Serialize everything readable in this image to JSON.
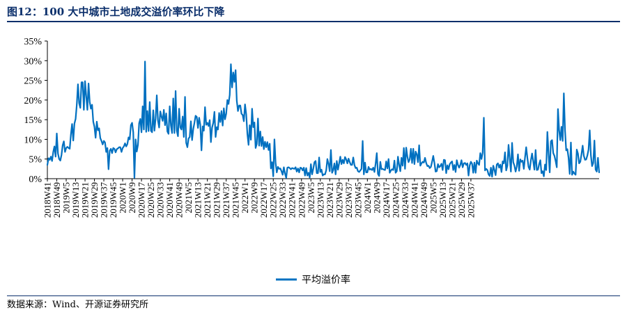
{
  "title": "图12：100 大中城市土地成交溢价率环比下降",
  "source": "数据来源：Wind、开源证券研究所",
  "chart_data": {
    "type": "line",
    "y_tick_labels": [
      "0%",
      "5%",
      "10%",
      "15%",
      "20%",
      "25%",
      "30%",
      "35%"
    ],
    "ylim": [
      0,
      35
    ],
    "y_unit": "%",
    "x_tick_labels": [
      "2018W41",
      "2018W49",
      "2019W5",
      "2019W13",
      "2019W21",
      "2019W29",
      "2019W37",
      "2019W45",
      "2020W1",
      "2020W9",
      "2020W17",
      "2020W25",
      "2020W33",
      "2020W41",
      "2020W49",
      "2021W5",
      "2021W13",
      "2021W21",
      "2021W29",
      "2021W37",
      "2021W45",
      "2022W1",
      "2022W9",
      "2022W17",
      "2022W25",
      "2022W33",
      "2022W41",
      "2022W49",
      "2023W5",
      "2023W13",
      "2023W21",
      "2023W29",
      "2023W37",
      "2023W45",
      "2024W1",
      "2024W9",
      "2024W17",
      "2024W25",
      "2024W33",
      "2024W41",
      "2024W49",
      "2025W5",
      "2025W13",
      "2025W21",
      "2025W29",
      "2025W37"
    ],
    "grid": false,
    "legend_position": "bottom-center",
    "series": [
      {
        "name": "平均溢价率",
        "color": "#0070c0",
        "values": [
          3.5,
          5.2,
          4.8,
          5.6,
          4.5,
          6.8,
          8.2,
          5.6,
          11.5,
          6.4,
          5,
          4.6,
          6,
          8.5,
          9.5,
          6.8,
          7.8,
          8.1,
          7.8,
          7.6,
          11.2,
          13.9,
          9.7,
          14,
          15.2,
          18.8,
          24,
          19.2,
          18,
          24.5,
          24.5,
          17.5,
          24.8,
          21,
          17.5,
          24.2,
          19.5,
          17.8,
          18.8,
          14.5,
          13.2,
          10.4,
          14.5,
          12.3,
          12.8,
          10.3,
          9.6,
          8.7,
          9.6,
          9.2,
          6.8,
          7.8,
          2.4,
          7.1,
          7.6,
          6.5,
          7.8,
          7.6,
          6.7,
          7.5,
          7.7,
          8,
          8,
          6.8,
          7.8,
          8.2,
          9,
          8.2,
          8.8,
          10.5,
          10,
          13.6,
          14.2,
          11.8,
          0.2,
          10,
          6.9,
          8.6,
          14.1,
          15.2,
          11.8,
          18.4,
          12.5,
          29.8,
          11.9,
          17.2,
          12.1,
          19.5,
          12.2,
          11.8,
          17.4,
          12.2,
          15.3,
          21.2,
          14.8,
          13,
          17.1,
          15.8,
          14.7,
          17.5,
          13.6,
          16.6,
          12,
          11.4,
          18.4,
          13.6,
          11.6,
          20.4,
          11.6,
          22.3,
          12.2,
          10.8,
          17.8,
          13,
          12.5,
          15.8,
          10.6,
          20.8,
          9.1,
          8,
          10.2,
          10.6,
          14.6,
          9.8,
          12.6,
          14.2,
          16,
          15.7,
          12.9,
          15.5,
          13.7,
          7.2,
          13.3,
          12.2,
          18.2,
          13.7,
          14.2,
          13.4,
          14.9,
          9.3,
          13,
          14.2,
          17,
          10.6,
          13.1,
          12.5,
          16.7,
          14.4,
          17.2,
          13.5,
          17.9,
          15.1,
          16.5,
          20,
          19,
          21.3,
          29.1,
          23.2,
          27,
          24.6,
          27.6,
          19.8,
          17.2,
          18.6,
          18.6,
          16.5,
          16.2,
          14.6,
          18.9,
          16.4,
          11.4,
          8.6,
          13.6,
          9.9,
          17.8,
          13.1,
          14.3,
          7.8,
          8.8,
          15.3,
          8.4,
          12,
          8.3,
          10.6,
          7.5,
          9.4,
          8,
          9.3,
          7.3,
          8.9,
          2.6,
          4.2,
          0.6,
          10,
          4,
          1.6,
          3,
          2.5,
          2.6,
          1.9,
          1,
          2.9,
          1.3,
          0.2,
          2.8,
          2.9,
          2.7,
          2.4,
          2.7,
          2.6,
          2.5,
          2.9,
          1.8,
          2.6,
          1.6,
          2.8,
          2.7,
          2.1,
          2.8,
          0.8,
          2.7,
          0.8,
          1.5,
          0.3,
          3.7,
          1.1,
          2.5,
          4.2,
          4.5,
          1.4,
          1.4,
          5.4,
          1.7,
          2.3,
          0.8,
          1.1,
          1.1,
          2.1,
          5,
          3.8,
          1.9,
          7.3,
          1.5,
          2.2,
          3.9,
          1.1,
          4.5,
          2.3,
          3.9,
          5.6,
          3.7,
          4.8,
          3.9,
          5.5,
          4.9,
          3.9,
          5.1,
          4.2,
          3.5,
          3.5,
          5.4,
          3.5,
          2.7,
          2.8,
          1.9,
          1.7,
          2.1,
          2.5,
          9.6,
          1.1,
          4.1,
          1.6,
          1.6,
          3,
          2.3,
          2.5,
          2.2,
          2.8,
          1.7,
          3.8,
          6.5,
          1.2,
          0.7,
          4.3,
          2.4,
          2.5,
          2.3,
          2.2,
          4.4,
          2.6,
          5,
          1.5,
          2.1,
          2.4,
          2.2,
          4.6,
          1.5,
          1.9,
          5.6,
          3.5,
          1.9,
          5.3,
          3.3,
          7.8,
          2.5,
          7.9,
          5.6,
          4.2,
          4.9,
          7.6,
          4,
          7.6,
          3.7,
          6.9,
          6.2,
          4.2,
          8.5,
          3.3,
          3.9,
          4.3,
          4.1,
          5.3,
          4,
          3.2,
          3.3,
          2.7,
          3,
          4.3,
          5.8,
          4,
          1.8,
          1.9,
          3.7,
          2.9,
          3.2,
          3.8,
          2.2,
          4.8,
          4.7,
          1.4,
          3.4,
          2.4,
          3.7,
          4.1,
          4.4,
          2.2,
          3.5,
          1.7,
          4.7,
          3.5,
          2.8,
          3.5,
          4.7,
          2.9,
          3.9,
          4,
          3.5,
          3.9,
          0.8,
          3.4,
          4.3,
          3.8,
          1.5,
          4.1,
          1.5,
          4.6,
          3.9,
          3.5,
          6.5,
          5,
          6.6,
          15.5,
          2.1,
          2.5,
          2.2,
          1.1,
          0.7,
          2.8,
          0.5,
          3.3,
          2.2,
          0.9,
          3.6,
          3.9,
          2.8,
          3.6,
          1.7,
          4.4,
          3.9,
          6.7,
          2.1,
          3.3,
          8.6,
          5.2,
          1.8,
          9.1,
          4.2,
          3.3,
          1.8,
          3.1,
          6.2,
          2,
          4.9,
          4.3,
          4.6,
          2.5,
          5.4,
          8,
          5.3,
          3,
          2.3,
          4.7,
          6.4,
          4.4,
          2.3,
          7.3,
          2.2,
          2.3,
          3.7,
          4.7,
          1.4,
          1.9,
          0.6,
          3.6,
          2.2,
          11.9,
          6.4,
          1.6,
          9.5,
          9.8,
          6.5,
          5.8,
          4.5,
          2.9,
          17.7,
          12.3,
          9.8,
          13.2,
          9.6,
          21.7,
          12.3,
          7.2,
          7.5,
          5.3,
          1.2,
          9.2,
          1,
          1.8,
          1.3,
          1,
          7.4,
          6.4,
          3.9,
          4.3,
          6.2,
          8.4,
          5.8,
          4.8,
          4.9,
          5.9,
          7.4,
          12.3,
          5.9,
          3.2,
          4,
          9.7,
          2.3,
          1.8,
          5.3,
          1.6
        ]
      }
    ]
  }
}
